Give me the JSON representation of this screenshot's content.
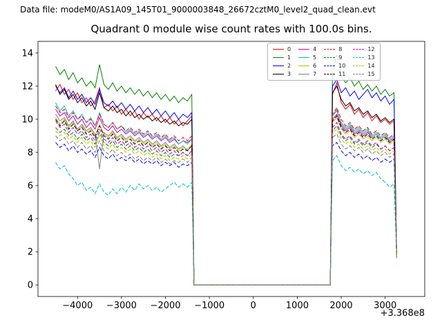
{
  "header": {
    "datafile": "Data file: modeM0/AS1A09_145T01_9000003848_26672cztM0_level2_quad_clean.evt"
  },
  "chart_data": {
    "type": "line",
    "title": "Quadrant 0 module wise count rates with 100.0s bins.",
    "xlabel": "",
    "ylabel": "",
    "x_offset_text": "+3.368e8",
    "xlim": [
      -4900,
      3900
    ],
    "ylim": [
      -0.7,
      14.7
    ],
    "grid": false,
    "legend": {
      "position": "upper right",
      "ncol": 4
    },
    "xticks": {
      "values": [
        -4000,
        -3000,
        -2000,
        -1000,
        0,
        1000,
        2000,
        3000
      ],
      "labels": [
        "−4000",
        "−3000",
        "−2000",
        "−1000",
        "0",
        "1000",
        "2000",
        "3000"
      ]
    },
    "yticks": {
      "values": [
        0,
        2,
        4,
        6,
        8,
        10,
        12,
        14
      ],
      "labels": [
        "0",
        "2",
        "4",
        "6",
        "8",
        "10",
        "12",
        "14"
      ]
    },
    "x": [
      -4500,
      -4400,
      -4300,
      -4200,
      -4100,
      -4000,
      -3900,
      -3800,
      -3700,
      -3600,
      -3500,
      -3400,
      -3300,
      -3200,
      -3100,
      -3000,
      -2900,
      -2800,
      -2700,
      -2600,
      -2500,
      -2400,
      -2300,
      -2200,
      -2100,
      -2000,
      -1900,
      -1800,
      -1700,
      -1600,
      -1500,
      -1400,
      -1350,
      1750,
      1800,
      1900,
      2000,
      2100,
      2200,
      2300,
      2400,
      2500,
      2600,
      2700,
      2800,
      2900,
      3000,
      3100,
      3200,
      3260
    ],
    "series": [
      {
        "name": "0",
        "color": "#ff0000",
        "dashed": false,
        "values": [
          11.7,
          12.1,
          11.5,
          11.8,
          11.2,
          11.6,
          11.0,
          11.3,
          10.8,
          11.1,
          11.9,
          10.7,
          10.9,
          10.5,
          10.8,
          10.3,
          10.6,
          10.2,
          10.5,
          10.0,
          10.4,
          10.1,
          10.3,
          9.9,
          10.2,
          9.8,
          10.1,
          9.7,
          10.0,
          9.6,
          9.9,
          10.2,
          0,
          0,
          11.5,
          12.2,
          11.0,
          10.6,
          10.9,
          10.3,
          10.6,
          10.1,
          10.4,
          9.9,
          10.2,
          9.8,
          10.0,
          9.7,
          9.9,
          1.9
        ]
      },
      {
        "name": "1",
        "color": "#008000",
        "dashed": false,
        "values": [
          13.2,
          12.7,
          13.0,
          12.4,
          12.8,
          12.2,
          12.5,
          12.0,
          12.3,
          11.9,
          13.3,
          12.1,
          11.8,
          12.2,
          11.7,
          12.0,
          11.6,
          11.9,
          11.5,
          11.8,
          11.4,
          11.7,
          11.3,
          11.6,
          11.2,
          11.5,
          11.1,
          11.4,
          11.0,
          11.3,
          11.1,
          11.5,
          0,
          0,
          12.8,
          13.9,
          12.6,
          12.2,
          12.5,
          12.0,
          12.3,
          11.8,
          12.1,
          11.7,
          12.0,
          11.5,
          11.8,
          11.4,
          11.6,
          2.1
        ]
      },
      {
        "name": "2",
        "color": "#0000ff",
        "dashed": false,
        "values": [
          12.0,
          11.6,
          11.9,
          11.3,
          11.7,
          11.2,
          11.5,
          11.0,
          11.3,
          10.9,
          11.8,
          11.0,
          10.8,
          11.1,
          10.7,
          11.0,
          10.6,
          10.9,
          10.5,
          10.8,
          10.4,
          10.7,
          10.3,
          10.6,
          10.2,
          10.5,
          10.1,
          10.4,
          10.0,
          10.3,
          10.1,
          10.4,
          0,
          0,
          12.0,
          12.4,
          11.6,
          11.9,
          11.4,
          11.7,
          11.2,
          11.5,
          11.8,
          11.3,
          11.6,
          11.1,
          11.4,
          10.9,
          11.2,
          2.0
        ]
      },
      {
        "name": "3",
        "color": "#000000",
        "dashed": false,
        "values": [
          12.1,
          11.5,
          11.8,
          11.2,
          11.5,
          11.0,
          11.3,
          10.8,
          11.1,
          10.6,
          11.6,
          10.7,
          10.5,
          10.8,
          10.4,
          10.6,
          10.2,
          10.5,
          10.1,
          10.3,
          10.0,
          10.2,
          9.9,
          10.1,
          9.8,
          10.0,
          9.7,
          9.9,
          9.6,
          9.8,
          9.7,
          10.0,
          0,
          0,
          11.6,
          12.0,
          11.2,
          10.8,
          11.0,
          10.5,
          10.7,
          10.3,
          10.5,
          10.1,
          10.3,
          9.9,
          10.1,
          9.8,
          10.0,
          1.9
        ]
      },
      {
        "name": "4",
        "color": "#bf00bf",
        "dashed": false,
        "values": [
          10.6,
          10.2,
          10.4,
          9.9,
          10.2,
          9.7,
          10.0,
          9.5,
          9.8,
          9.4,
          10.1,
          9.5,
          9.3,
          9.6,
          9.2,
          9.4,
          9.1,
          9.3,
          9.0,
          9.2,
          8.9,
          9.1,
          8.8,
          9.0,
          8.7,
          8.9,
          8.6,
          8.8,
          8.5,
          8.7,
          8.6,
          8.8,
          0,
          0,
          10.0,
          10.3,
          9.6,
          9.3,
          9.5,
          9.1,
          9.3,
          9.0,
          9.2,
          8.9,
          9.1,
          8.8,
          9.0,
          8.7,
          8.9,
          1.8
        ]
      },
      {
        "name": "5",
        "color": "#00bfbf",
        "dashed": false,
        "values": [
          11.0,
          10.5,
          10.8,
          10.2,
          10.5,
          10.0,
          10.3,
          9.8,
          10.1,
          9.6,
          10.4,
          9.7,
          9.5,
          9.8,
          9.4,
          9.6,
          9.2,
          9.4,
          9.1,
          9.3,
          9.0,
          9.2,
          8.9,
          9.1,
          8.8,
          9.0,
          8.7,
          8.9,
          8.5,
          8.7,
          8.5,
          8.8,
          0,
          0,
          10.2,
          10.5,
          9.8,
          9.5,
          9.7,
          9.3,
          9.5,
          9.2,
          9.4,
          9.0,
          9.2,
          8.9,
          9.1,
          8.8,
          9.0,
          1.8
        ]
      },
      {
        "name": "6",
        "color": "#bfbf00",
        "dashed": false,
        "values": [
          10.1,
          9.7,
          10.0,
          9.5,
          9.8,
          9.3,
          9.6,
          9.2,
          9.4,
          9.0,
          9.7,
          9.1,
          8.9,
          9.2,
          8.8,
          9.0,
          8.7,
          8.9,
          8.6,
          8.8,
          8.5,
          8.7,
          8.4,
          8.6,
          8.3,
          8.5,
          8.2,
          8.4,
          8.1,
          8.3,
          8.2,
          8.5,
          0,
          0,
          9.8,
          10.1,
          9.4,
          9.1,
          9.3,
          8.9,
          9.1,
          8.8,
          9.0,
          8.7,
          8.9,
          8.6,
          8.8,
          8.5,
          8.7,
          1.7
        ]
      },
      {
        "name": "7",
        "color": "#7f7f7f",
        "dashed": false,
        "values": [
          10.3,
          9.9,
          10.1,
          9.6,
          9.9,
          9.4,
          9.7,
          9.3,
          9.5,
          9.1,
          7.0,
          9.2,
          9.0,
          9.3,
          8.9,
          9.1,
          8.8,
          9.0,
          8.7,
          8.9,
          8.6,
          8.8,
          8.5,
          8.7,
          8.4,
          8.6,
          8.3,
          8.5,
          8.2,
          8.4,
          8.1,
          8.4,
          0,
          0,
          10.2,
          10.6,
          9.7,
          9.4,
          9.6,
          9.2,
          9.4,
          9.1,
          9.3,
          8.9,
          9.1,
          8.8,
          9.0,
          8.6,
          8.8,
          1.8
        ]
      },
      {
        "name": "8",
        "color": "#ff0000",
        "dashed": true,
        "values": [
          10.8,
          10.4,
          10.6,
          10.1,
          10.4,
          10.0,
          10.2,
          9.8,
          10.0,
          9.6,
          10.3,
          9.7,
          9.5,
          9.8,
          9.4,
          9.6,
          9.3,
          9.5,
          9.2,
          9.4,
          9.1,
          9.3,
          9.0,
          9.2,
          8.9,
          9.1,
          8.8,
          9.0,
          8.7,
          8.9,
          8.7,
          9.0,
          0,
          0,
          10.3,
          10.7,
          10.0,
          9.6,
          9.8,
          9.4,
          9.6,
          9.3,
          9.5,
          9.1,
          9.3,
          9.0,
          9.2,
          8.9,
          9.1,
          1.8
        ]
      },
      {
        "name": "9",
        "color": "#008000",
        "dashed": true,
        "values": [
          9.5,
          9.2,
          9.4,
          9.0,
          9.2,
          8.8,
          9.1,
          8.7,
          8.9,
          8.5,
          9.2,
          8.6,
          8.4,
          8.7,
          8.3,
          8.5,
          8.2,
          8.4,
          8.1,
          8.3,
          8.0,
          8.2,
          7.9,
          8.1,
          7.8,
          8.0,
          7.7,
          7.9,
          7.8,
          8.0,
          7.8,
          8.1,
          0,
          0,
          9.3,
          9.6,
          9.0,
          8.7,
          8.9,
          8.5,
          8.7,
          8.4,
          8.6,
          8.3,
          8.5,
          8.2,
          8.4,
          8.1,
          8.3,
          1.7
        ]
      },
      {
        "name": "10",
        "color": "#0000ff",
        "dashed": true,
        "values": [
          8.6,
          8.3,
          8.5,
          8.1,
          8.4,
          8.0,
          8.2,
          7.9,
          8.1,
          7.7,
          8.3,
          7.8,
          7.6,
          7.9,
          7.5,
          7.7,
          7.5,
          7.7,
          7.4,
          7.6,
          7.3,
          7.5,
          7.3,
          7.5,
          7.2,
          7.4,
          7.2,
          7.4,
          7.1,
          7.3,
          7.2,
          7.4,
          0,
          0,
          8.4,
          8.6,
          8.1,
          7.8,
          8.0,
          7.7,
          7.9,
          7.6,
          7.8,
          7.5,
          7.7,
          7.4,
          7.6,
          7.4,
          7.6,
          1.7
        ]
      },
      {
        "name": "11",
        "color": "#000000",
        "dashed": true,
        "values": [
          10.0,
          9.6,
          9.9,
          9.4,
          9.7,
          9.3,
          9.5,
          9.1,
          9.3,
          8.9,
          9.6,
          9.0,
          8.8,
          9.1,
          8.7,
          8.9,
          8.6,
          8.8,
          8.5,
          8.7,
          8.4,
          8.6,
          8.3,
          8.5,
          8.2,
          8.4,
          8.1,
          8.3,
          8.0,
          8.2,
          8.1,
          8.4,
          0,
          0,
          9.9,
          10.2,
          9.5,
          9.2,
          9.4,
          9.0,
          9.2,
          8.9,
          9.1,
          8.8,
          9.0,
          8.7,
          8.9,
          8.6,
          8.8,
          1.8
        ]
      },
      {
        "name": "12",
        "color": "#bf00bf",
        "dashed": true,
        "values": [
          9.9,
          9.5,
          9.7,
          9.2,
          9.5,
          9.1,
          9.3,
          8.9,
          9.1,
          8.7,
          9.4,
          8.8,
          8.6,
          8.9,
          8.5,
          8.7,
          8.4,
          8.6,
          8.3,
          8.5,
          8.2,
          8.4,
          8.1,
          8.3,
          8.0,
          8.2,
          7.9,
          8.1,
          7.8,
          8.0,
          7.8,
          8.1,
          0,
          0,
          9.5,
          9.8,
          9.1,
          8.8,
          9.0,
          8.6,
          8.8,
          8.5,
          8.7,
          8.4,
          8.6,
          8.2,
          8.4,
          8.1,
          8.3,
          1.7
        ]
      },
      {
        "name": "13",
        "color": "#00bfbf",
        "dashed": true,
        "values": [
          7.4,
          7.0,
          7.2,
          6.7,
          6.4,
          6.0,
          6.2,
          5.7,
          5.9,
          5.5,
          6.1,
          5.6,
          5.4,
          5.8,
          5.5,
          5.9,
          5.6,
          6.0,
          5.7,
          6.1,
          5.8,
          6.0,
          5.7,
          5.9,
          5.6,
          5.8,
          6.0,
          6.2,
          5.9,
          6.1,
          5.9,
          6.2,
          0,
          0,
          7.5,
          7.8,
          7.2,
          6.9,
          7.1,
          6.8,
          7.0,
          6.7,
          6.9,
          6.6,
          6.8,
          6.4,
          6.2,
          5.9,
          6.1,
          1.6
        ]
      },
      {
        "name": "14",
        "color": "#bfbf00",
        "dashed": true,
        "values": [
          9.3,
          9.0,
          9.2,
          8.8,
          9.0,
          8.6,
          8.9,
          8.5,
          8.7,
          8.3,
          9.0,
          8.4,
          8.2,
          8.5,
          8.1,
          8.3,
          8.0,
          8.2,
          7.9,
          8.1,
          7.8,
          8.0,
          7.7,
          7.9,
          7.6,
          7.8,
          7.5,
          7.7,
          7.6,
          7.8,
          7.6,
          7.9,
          0,
          0,
          9.2,
          9.4,
          8.8,
          8.5,
          8.7,
          8.3,
          8.5,
          8.2,
          8.4,
          8.1,
          8.3,
          8.0,
          8.2,
          7.9,
          8.1,
          1.7
        ]
      },
      {
        "name": "15",
        "color": "#7f7f7f",
        "dashed": true,
        "values": [
          9.0,
          8.7,
          8.9,
          8.5,
          8.7,
          8.3,
          8.6,
          8.2,
          8.4,
          8.0,
          8.7,
          8.1,
          7.9,
          8.2,
          7.8,
          8.0,
          7.7,
          7.9,
          7.6,
          7.8,
          7.5,
          7.7,
          7.5,
          7.7,
          7.4,
          7.6,
          7.3,
          7.5,
          7.4,
          7.6,
          7.4,
          7.7,
          0,
          0,
          8.9,
          9.1,
          8.5,
          8.2,
          8.4,
          8.1,
          8.3,
          8.0,
          8.2,
          7.9,
          8.1,
          7.8,
          8.0,
          7.7,
          7.9,
          1.7
        ]
      }
    ]
  }
}
